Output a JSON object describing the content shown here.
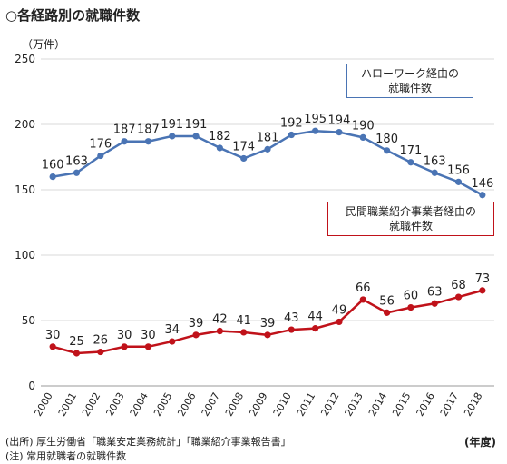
{
  "header": {
    "title": "○各経路別の就職件数",
    "unit": "（万件）"
  },
  "footer": {
    "source": "(出所) 厚生労働省「職業安定業務統計」「職業紹介事業報告書」",
    "note": "(注) 常用就職者の就職件数",
    "x_unit": "(年度)"
  },
  "chart_data": {
    "type": "line",
    "categories": [
      "2000",
      "2001",
      "2002",
      "2003",
      "2004",
      "2005",
      "2006",
      "2007",
      "2008",
      "2009",
      "2010",
      "2011",
      "2012",
      "2013",
      "2014",
      "2015",
      "2016",
      "2017",
      "2018"
    ],
    "ylim": [
      0,
      250
    ],
    "yticks": [
      0,
      50,
      100,
      150,
      200,
      250
    ],
    "grid": true,
    "series": [
      {
        "name": "ハローワーク経由の就職件数",
        "legend_lines": [
          "ハローワーク経由の",
          "就職件数"
        ],
        "color": "#4a74b4",
        "values": [
          160,
          163,
          176,
          187,
          187,
          191,
          191,
          182,
          174,
          181,
          192,
          195,
          194,
          190,
          180,
          171,
          163,
          156,
          146
        ]
      },
      {
        "name": "民間職業紹介事業者経由の就職件数",
        "legend_lines": [
          "民間職業紹介事業者経由の",
          "就職件数"
        ],
        "color": "#c0121a",
        "values": [
          30,
          25,
          26,
          30,
          30,
          34,
          39,
          42,
          41,
          39,
          43,
          44,
          49,
          66,
          56,
          60,
          63,
          68,
          73
        ]
      }
    ]
  }
}
